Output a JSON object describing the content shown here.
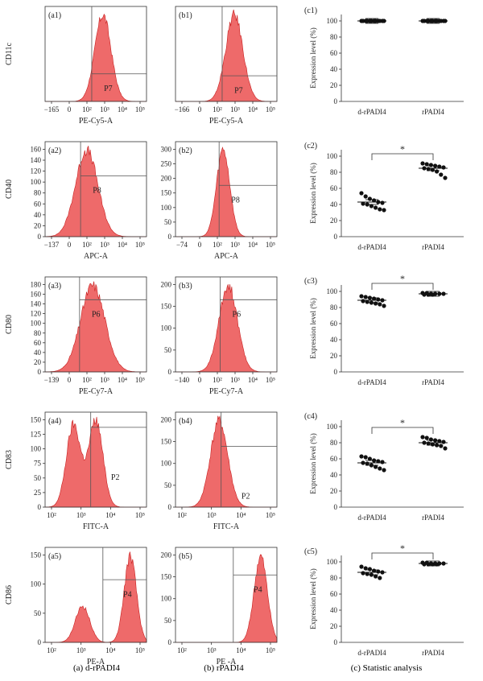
{
  "colors": {
    "fill": "#ee6a6a",
    "edge": "#c81e1e",
    "axis": "#333333",
    "gate": "#555555",
    "dot": "#111111"
  },
  "captions": {
    "a": "(a) d-rPADI4",
    "b": "(b) rPADI4",
    "c": "(c) Statistic analysis"
  },
  "stat_axes": {
    "ylabel": "Expression level (%)",
    "categories": [
      "d-rPADI4",
      "rPADI4"
    ],
    "yticks": [
      "0",
      "20",
      "40",
      "60",
      "80",
      "100"
    ],
    "ylim": [
      0,
      100
    ],
    "sig": "*"
  },
  "rows": [
    {
      "ylabel": "CD11c",
      "hist": [
        {
          "panel": "(a1)",
          "xlabel": "PE-Cy5-A",
          "xticks": [
            "−165",
            "0",
            "10²",
            "10³",
            "10⁴",
            "10⁵"
          ],
          "yticks": [],
          "gate": "P7",
          "gate_x": 0.58,
          "gate_line_y": 0.29,
          "peak": 0.57,
          "spread": 0.08,
          "secondary": 0,
          "sec_pos": 0
        },
        {
          "panel": "(b1)",
          "xlabel": "PE-Cy5-A",
          "xticks": [
            "−166",
            "0",
            "10²",
            "10³",
            "10⁴",
            "10⁵"
          ],
          "yticks": [],
          "gate": "P7",
          "gate_x": 0.58,
          "gate_line_y": 0.27,
          "peak": 0.58,
          "spread": 0.085,
          "secondary": 0,
          "sec_pos": 0
        }
      ],
      "stat": {
        "panel": "(c1)",
        "sig": false,
        "series": [
          {
            "name": "d-rPADI4",
            "mean": 100,
            "values": [
              100,
              100,
              100,
              100,
              100,
              100,
              100,
              100,
              100,
              100,
              100,
              100
            ]
          },
          {
            "name": "rPADI4",
            "mean": 100,
            "values": [
              100,
              100,
              100,
              100,
              100,
              100,
              100,
              100,
              100,
              100,
              100,
              100
            ]
          }
        ]
      }
    },
    {
      "ylabel": "CD40",
      "hist": [
        {
          "panel": "(a2)",
          "xlabel": "APC-A",
          "xticks": [
            "−137",
            "0",
            "10²",
            "10³",
            "10⁴",
            "10⁵"
          ],
          "yticks": [
            "0",
            "20",
            "40",
            "60",
            "80",
            "100",
            "120",
            "140",
            "160"
          ],
          "gate": "P8",
          "gate_x": 0.47,
          "gate_line_y": 0.64,
          "peak": 0.41,
          "spread": 0.11,
          "secondary": 0,
          "sec_pos": 0
        },
        {
          "panel": "(b2)",
          "xlabel": "APC-A",
          "xticks": [
            "−74",
            "0",
            "10²",
            "10³",
            "10⁴",
            "10⁵"
          ],
          "yticks": [
            "0",
            "50",
            "100",
            "150",
            "200",
            "250",
            "300"
          ],
          "gate": "P8",
          "gate_x": 0.55,
          "gate_line_y": 0.54,
          "peak": 0.47,
          "spread": 0.065,
          "secondary": 0,
          "sec_pos": 0
        }
      ],
      "stat": {
        "panel": "(c2)",
        "sig": true,
        "series": [
          {
            "name": "d-rPADI4",
            "mean": 43,
            "values": [
              54,
              50,
              47,
              45,
              43,
              42,
              41,
              40,
              38,
              36,
              34,
              33
            ]
          },
          {
            "name": "rPADI4",
            "mean": 85,
            "values": [
              91,
              90,
              89,
              88,
              87,
              86,
              85,
              84,
              83,
              81,
              77,
              73
            ]
          }
        ]
      }
    },
    {
      "ylabel": "CD80",
      "hist": [
        {
          "panel": "(a3)",
          "xlabel": "PE-Cy7-A",
          "xticks": [
            "−139",
            "0",
            "10²",
            "10³",
            "10⁴",
            "10⁵"
          ],
          "yticks": [
            "0",
            "20",
            "40",
            "60",
            "80",
            "100",
            "120",
            "140",
            "160",
            "180"
          ],
          "gate": "P6",
          "gate_x": 0.46,
          "gate_line_y": 0.76,
          "peak": 0.47,
          "spread": 0.12,
          "secondary": 0,
          "sec_pos": 0
        },
        {
          "panel": "(b3)",
          "xlabel": "PE-Cy7-A",
          "xticks": [
            "−140",
            "0",
            "10²",
            "10³",
            "10⁴",
            "10⁵"
          ],
          "yticks": [
            "0",
            "50",
            "100",
            "150",
            "200"
          ],
          "gate": "P6",
          "gate_x": 0.56,
          "gate_line_y": 0.76,
          "peak": 0.52,
          "spread": 0.09,
          "secondary": 0,
          "sec_pos": 0
        }
      ],
      "stat": {
        "panel": "(c3)",
        "sig": true,
        "series": [
          {
            "name": "d-rPADI4",
            "mean": 89,
            "values": [
              94,
              93,
              92,
              91,
              90,
              89,
              88,
              87,
              86,
              85,
              84,
              82
            ]
          },
          {
            "name": "rPADI4",
            "mean": 97,
            "values": [
              98,
              98,
              97,
              97,
              97,
              97,
              96,
              96,
              96
            ]
          }
        ]
      }
    },
    {
      "ylabel": "CD83",
      "hist": [
        {
          "panel": "(a4)",
          "xlabel": "FITC-A",
          "xticks": [
            "10²",
            "10³",
            "10⁴",
            "10⁵"
          ],
          "yticks": [
            "0",
            "25",
            "50",
            "75",
            "100",
            "125",
            "150"
          ],
          "gate": "P2",
          "gate_x": 0.65,
          "gate_line_y": 0.84,
          "peak": 0.5,
          "spread": 0.07,
          "secondary": 0.95,
          "sec_pos": 0.28
        },
        {
          "panel": "(b4)",
          "xlabel": "FITC-A",
          "xticks": [
            "10²",
            "10³",
            "10⁴",
            "10⁵"
          ],
          "yticks": [
            "0",
            "50",
            "100",
            "150",
            "200"
          ],
          "gate": "P2",
          "gate_x": 0.65,
          "gate_line_y": 0.64,
          "peak": 0.43,
          "spread": 0.085,
          "secondary": 0,
          "sec_pos": 0
        }
      ],
      "stat": {
        "panel": "(c4)",
        "sig": true,
        "series": [
          {
            "name": "d-rPADI4",
            "mean": 55,
            "values": [
              63,
              62,
              60,
              58,
              57,
              56,
              55,
              54,
              52,
              50,
              48,
              46
            ]
          },
          {
            "name": "rPADI4",
            "mean": 80,
            "values": [
              87,
              86,
              84,
              83,
              82,
              81,
              80,
              79,
              78,
              77,
              76,
              73
            ]
          }
        ]
      }
    },
    {
      "ylabel": "CD86",
      "hist": [
        {
          "panel": "(a5)",
          "xlabel": "PE-A",
          "xticks": [
            "10²",
            "10³",
            "10⁴",
            "10⁵"
          ],
          "yticks": [
            "0",
            "50",
            "100",
            "150"
          ],
          "gate": "P4",
          "gate_x": 0.77,
          "gate_line_y": 0.66,
          "peak": 0.84,
          "spread": 0.06,
          "secondary": 0.42,
          "sec_pos": 0.37
        },
        {
          "panel": "(b5)",
          "xlabel": "PE -A",
          "xticks": [
            "10²",
            "10³",
            "10⁴",
            "10⁵"
          ],
          "yticks": [
            "0",
            "50",
            "100",
            "150",
            "200"
          ],
          "gate": "P4",
          "gate_x": 0.77,
          "gate_line_y": 0.71,
          "peak": 0.84,
          "spread": 0.065,
          "secondary": 0,
          "sec_pos": 0
        }
      ],
      "stat": {
        "panel": "(c5)",
        "sig": true,
        "series": [
          {
            "name": "d-rPADI4",
            "mean": 87,
            "values": [
              94,
              92,
              91,
              89,
              88,
              87,
              86,
              85,
              84,
              82,
              80
            ]
          },
          {
            "name": "rPADI4",
            "mean": 98,
            "values": [
              99,
              99,
              98,
              98,
              98,
              98,
              97,
              97,
              97,
              97
            ]
          }
        ]
      }
    }
  ],
  "chart_data": [
    {
      "type": "scatter",
      "title": "(c1)",
      "categories": [
        "d-rPADI4",
        "rPADI4"
      ],
      "ylabel": "Expression level (%)",
      "ylim": [
        0,
        100
      ],
      "series": [
        {
          "name": "d-rPADI4",
          "values": [
            100,
            100,
            100,
            100,
            100,
            100,
            100,
            100,
            100,
            100,
            100,
            100
          ]
        },
        {
          "name": "rPADI4",
          "values": [
            100,
            100,
            100,
            100,
            100,
            100,
            100,
            100,
            100,
            100,
            100,
            100
          ]
        }
      ]
    },
    {
      "type": "scatter",
      "title": "(c2)",
      "categories": [
        "d-rPADI4",
        "rPADI4"
      ],
      "ylabel": "Expression level (%)",
      "ylim": [
        0,
        100
      ],
      "series": [
        {
          "name": "d-rPADI4",
          "values": [
            54,
            50,
            47,
            45,
            43,
            42,
            41,
            40,
            38,
            36,
            34,
            33
          ]
        },
        {
          "name": "rPADI4",
          "values": [
            91,
            90,
            89,
            88,
            87,
            86,
            85,
            84,
            83,
            81,
            77,
            73
          ]
        }
      ]
    },
    {
      "type": "scatter",
      "title": "(c3)",
      "categories": [
        "d-rPADI4",
        "rPADI4"
      ],
      "ylabel": "Expression level (%)",
      "ylim": [
        0,
        100
      ],
      "series": [
        {
          "name": "d-rPADI4",
          "values": [
            94,
            93,
            92,
            91,
            90,
            89,
            88,
            87,
            86,
            85,
            84,
            82
          ]
        },
        {
          "name": "rPADI4",
          "values": [
            98,
            98,
            97,
            97,
            97,
            97,
            96,
            96,
            96
          ]
        }
      ]
    },
    {
      "type": "scatter",
      "title": "(c4)",
      "categories": [
        "d-rPADI4",
        "rPADI4"
      ],
      "ylabel": "Expression level (%)",
      "ylim": [
        0,
        100
      ],
      "series": [
        {
          "name": "d-rPADI4",
          "values": [
            63,
            62,
            60,
            58,
            57,
            56,
            55,
            54,
            52,
            50,
            48,
            46
          ]
        },
        {
          "name": "rPADI4",
          "values": [
            87,
            86,
            84,
            83,
            82,
            81,
            80,
            79,
            78,
            77,
            76,
            73
          ]
        }
      ]
    },
    {
      "type": "scatter",
      "title": "(c5)",
      "categories": [
        "d-rPADI4",
        "rPADI4"
      ],
      "ylabel": "Expression level (%)",
      "ylim": [
        0,
        100
      ],
      "series": [
        {
          "name": "d-rPADI4",
          "values": [
            94,
            92,
            91,
            89,
            88,
            87,
            86,
            85,
            84,
            82,
            80
          ]
        },
        {
          "name": "rPADI4",
          "values": [
            99,
            99,
            98,
            98,
            98,
            98,
            97,
            97,
            97,
            97
          ]
        }
      ]
    }
  ]
}
